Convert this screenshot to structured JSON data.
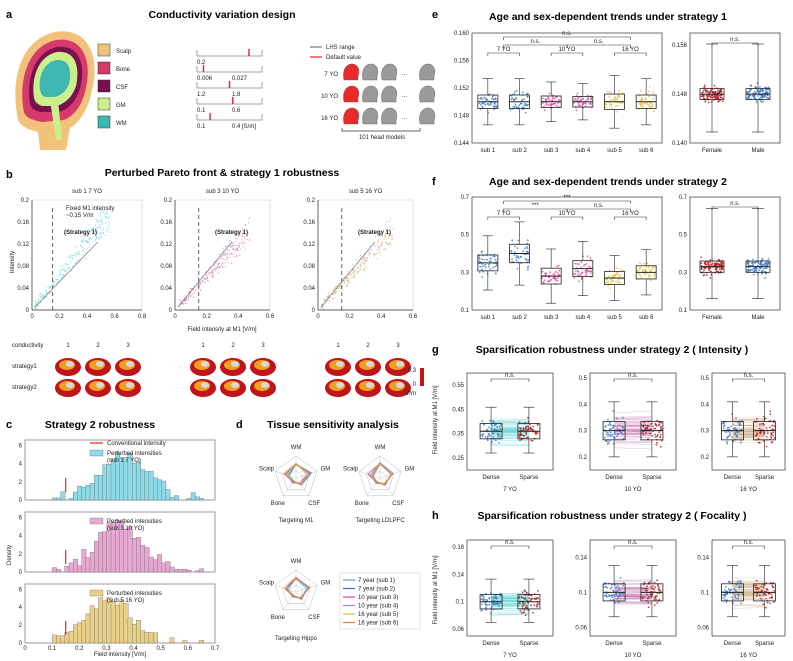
{
  "panel_labels": {
    "a": "a",
    "b": "b",
    "c": "c",
    "d": "d",
    "e": "e",
    "f": "f",
    "g": "g",
    "h": "h"
  },
  "panel_a": {
    "title": "Conductivity variation design",
    "tissues": [
      {
        "name": "Scalp",
        "color": "#f2c27a",
        "range_lo": "0.2",
        "range_hi": ""
      },
      {
        "name": "Bone",
        "color": "#d63a6a",
        "range_lo": "0.006",
        "range_hi": "0.027"
      },
      {
        "name": "CSF",
        "color": "#7a1050",
        "range_lo": "1.2",
        "range_hi": "1.8"
      },
      {
        "name": "GM",
        "color": "#c9f08a",
        "range_lo": "0.1",
        "range_hi": "0.6"
      },
      {
        "name": "WM",
        "color": "#3fb7b0",
        "range_lo": "0.1",
        "range_hi": "0.4 [S/m]"
      }
    ],
    "legend_range": "LHS range",
    "legend_default": "Default value",
    "ages": [
      "7 YO",
      "10 YO",
      "16 YO"
    ],
    "dots": "...",
    "footer": "101 head models"
  },
  "panel_b": {
    "title": "Perturbed Pareto front & strategy 1 robustness",
    "subplots": [
      {
        "label": "sub 1   7 YO",
        "color": "#5fd0d0",
        "note": "(Strategy 1)",
        "extra": "Fixed M1 intensity\n~0.15 V/m",
        "xticks": [
          "0",
          "0.2",
          "0.4",
          "0.6",
          "0.8"
        ]
      },
      {
        "label": "sub 3   10 YO",
        "color": "#c678b0",
        "note": "(Strategy 1)",
        "extra": "",
        "xticks": [
          "0",
          "0.2",
          "0.4",
          "0.6"
        ]
      },
      {
        "label": "sub 5   16 YO",
        "color": "#c9a57a",
        "note": "(Strategy 1)",
        "extra": "",
        "xticks": [
          "0",
          "0.2",
          "0.4",
          "0.6"
        ]
      }
    ],
    "yticks": [
      "0",
      "0.04",
      "0.08",
      "0.12",
      "0.16",
      "0.2"
    ],
    "ylabel": "Intensity",
    "xlabel": "Field intensity at M1 [V/m]",
    "row_labels": [
      "conductivity",
      "strategy1",
      "strategy2"
    ],
    "col_nums": [
      "1",
      "2",
      "3"
    ],
    "cbar_top": "0.3",
    "cbar_bot": "0",
    "cbar_unit": "V/m"
  },
  "panel_c": {
    "title": "Strategy 2 robustness",
    "legend_conv": "Conventional intensity",
    "legends": [
      "Perturbed intensities\n(sub 1 7 YO)",
      "Perturbed intensities\n(sub 3 10 YO)",
      "Perturbed intensities\n(sub 5 16 YO)"
    ],
    "colors": [
      "#8edbe8",
      "#e7a9d2",
      "#e8d08a"
    ],
    "ylabel": "Density",
    "xlabel": "Field intensity [V/m]",
    "xticks": [
      "0",
      "0.1",
      "0.2",
      "0.3",
      "0.4",
      "0.5",
      "0.6",
      "0.7"
    ],
    "yticks": [
      "0",
      "2",
      "4",
      "6"
    ]
  },
  "panel_d": {
    "title": "Tissue sensitivity analysis",
    "axes": [
      "WM",
      "GM",
      "CSF",
      "Bone",
      "Scalp"
    ],
    "targets": [
      "Targeting M1",
      "Targeting LDLPFC",
      "Targeting Hippo"
    ],
    "legend": [
      "7 year (sub 1)",
      "7 year (sub 2)",
      "10 year (sub 3)",
      "10 year (sub 4)",
      "16 year (sub 5)",
      "16 year (sub 6)"
    ],
    "legend_colors": [
      "#4fa3e0",
      "#3a6fd8",
      "#e04a7a",
      "#b080e0",
      "#e0c040",
      "#e08a3a"
    ]
  },
  "panel_e": {
    "title": "Age and sex-dependent trends under strategy 1",
    "subjects": [
      "sub 1",
      "sub 2",
      "sub 3",
      "sub 4",
      "sub 5",
      "sub 6"
    ],
    "yticks": [
      "0.144",
      "0.148",
      "0.152",
      "0.156",
      "0.160"
    ],
    "groups": [
      "7 YO",
      "10 YO",
      "16 YO"
    ],
    "sig": [
      "n.s.",
      "n.s.",
      "n.s."
    ],
    "sex": [
      "Female",
      "Male"
    ],
    "sex_yticks": [
      "0.140",
      "0.148",
      "0.156"
    ],
    "sex_sig": "n.s."
  },
  "panel_f": {
    "title": "Age and sex-dependent trends under strategy 2",
    "subjects": [
      "sub 1",
      "sub 2",
      "sub 3",
      "sub 4",
      "sub 5",
      "sub 6"
    ],
    "yticks": [
      "0.1",
      "0.3",
      "0.5",
      "0.7"
    ],
    "groups": [
      "7 YO",
      "10 YO",
      "16 YO"
    ],
    "sig": [
      "***",
      "***",
      "n.s."
    ],
    "sex": [
      "Female",
      "Male"
    ],
    "sex_yticks": [
      "0.1",
      "0.3",
      "0.5",
      "0.7"
    ],
    "sex_sig": "n.s."
  },
  "panel_g": {
    "title": "Sparsification robustness under strategy 2 ( Intensity )",
    "ylabel": "Field intensity at M1 [V/m]",
    "ages": [
      "7 YO",
      "10 YO",
      "16 YO"
    ],
    "xcats": [
      "Dense",
      "Sparse"
    ],
    "sig": "n.s.",
    "yticks": [
      [
        "0.25",
        "0.35",
        "0.45",
        "0.55"
      ],
      [
        "0.2",
        "0.3",
        "0.4",
        "0.5"
      ],
      [
        "0.2",
        "0.3",
        "0.4",
        "0.5"
      ]
    ]
  },
  "panel_h": {
    "title": "Sparsification robustness under strategy 2 ( Focality )",
    "ylabel": "Field intensity at M1 [V/m]",
    "ages": [
      "7 YO",
      "10 YO",
      "16 YO"
    ],
    "xcats": [
      "Dense",
      "Sparse"
    ],
    "sig": "n.s.",
    "yticks": [
      [
        "0.06",
        "0.1",
        "0.14",
        "0.18"
      ],
      [
        "0.06",
        "0.1",
        "0.14"
      ],
      [
        "0.06",
        "0.1",
        "0.14"
      ]
    ]
  },
  "colors": {
    "teal": "#5fd0d0",
    "pink": "#c678b0",
    "tan": "#c9a57a",
    "blue": "#3a78c8",
    "red": "#b0161e",
    "gold": "#e6c230",
    "magenta": "#e04a9a"
  }
}
